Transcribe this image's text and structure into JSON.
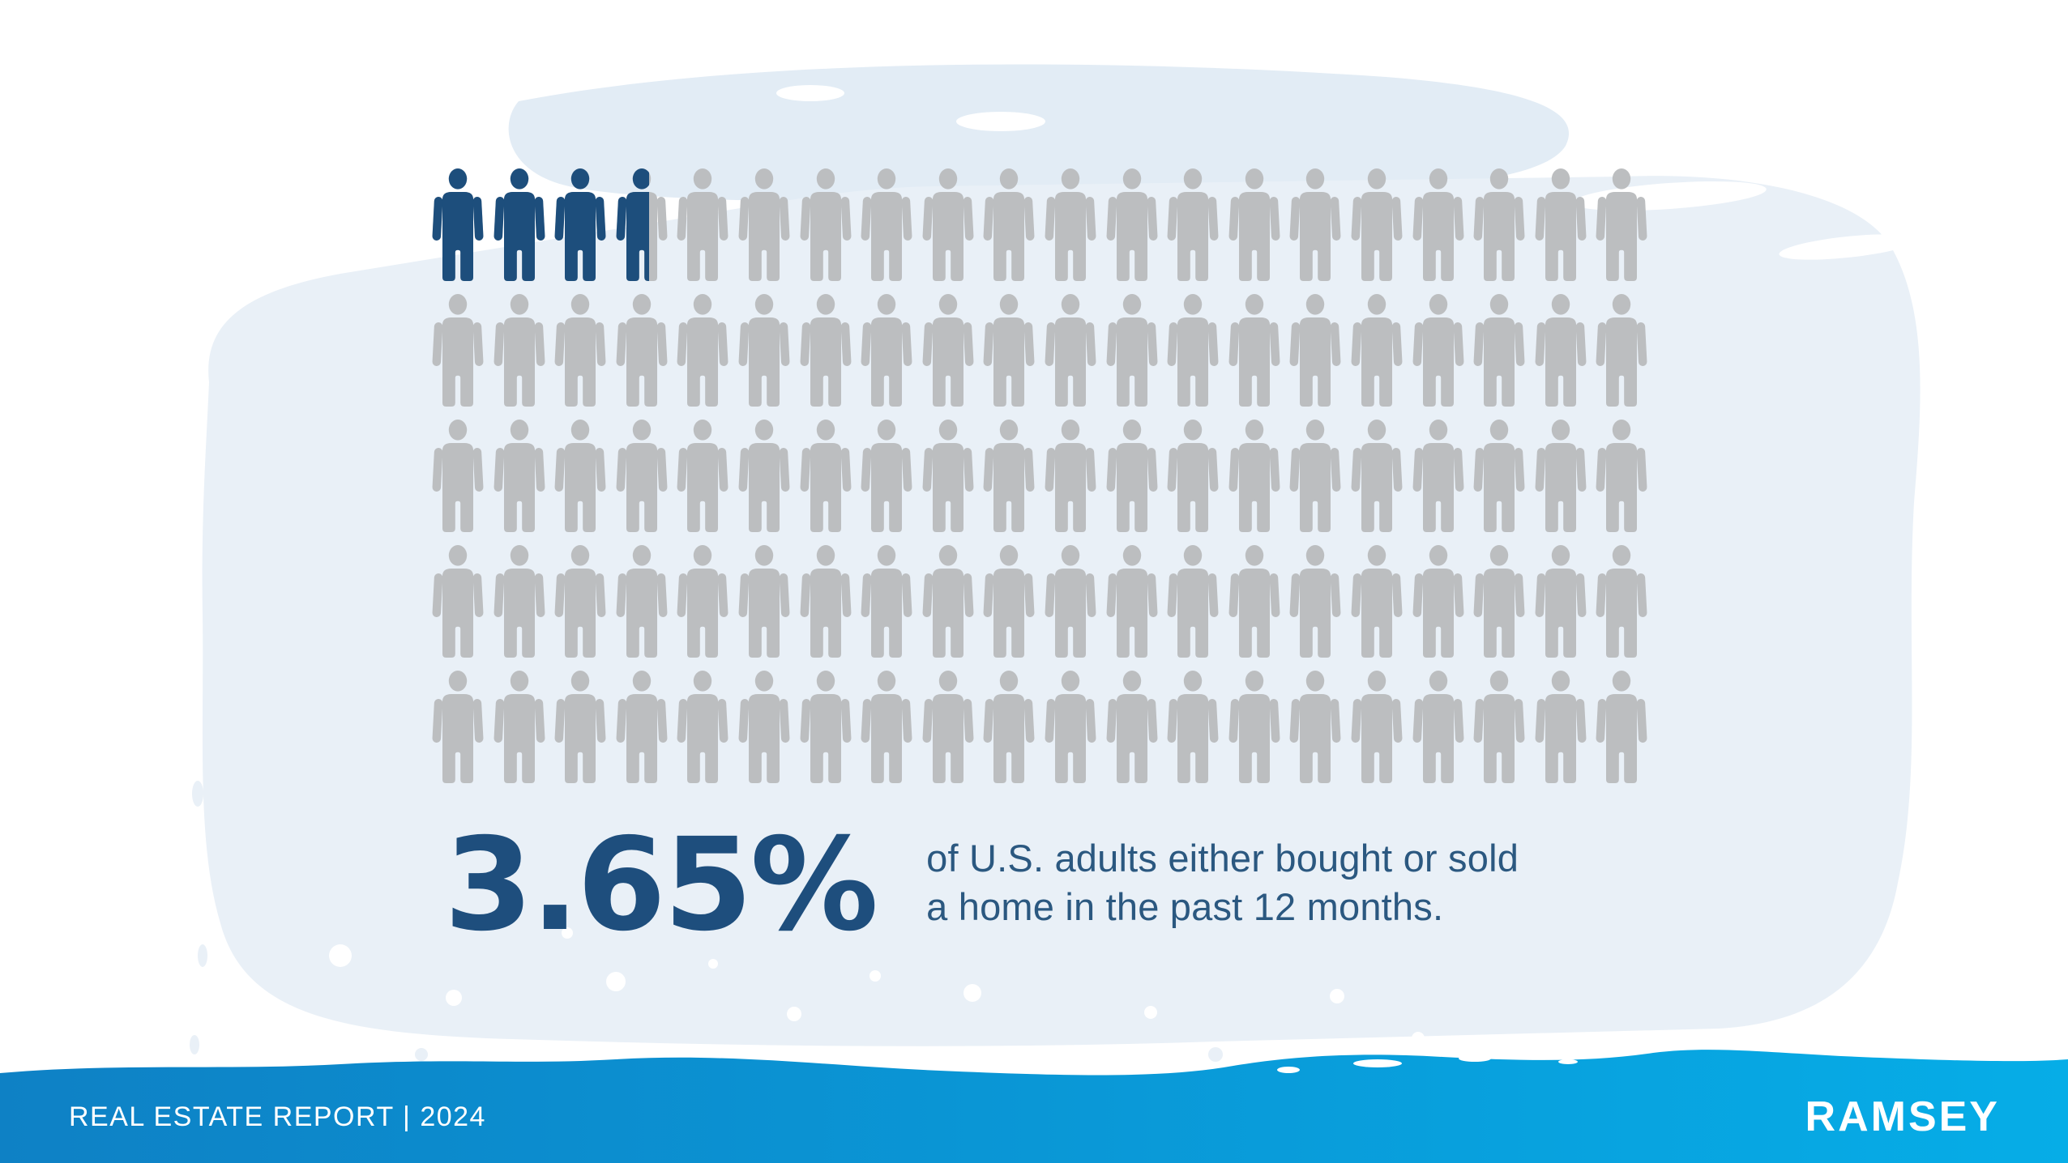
{
  "colors": {
    "highlight_navy": "#1d4e7c",
    "icon_gray": "#bcbec0",
    "wash_main": "#e9f0f7",
    "wash_band": "#e2ecf5",
    "footer_blue_left": "#0e81c5",
    "footer_blue_right": "#06ade7",
    "stat_text": "#1e4e7d",
    "desc_text": "#2b5880",
    "footer_text": "#ffffff",
    "page_bg": "#ffffff"
  },
  "chart_data": {
    "type": "pictogram",
    "icon": "person",
    "total_icons": 100,
    "rows": 5,
    "cols": 20,
    "highlighted_value": 3.65,
    "highlight_color": "#1d4e7c",
    "base_color": "#bcbec0",
    "title": "3.65% of U.S. adults either bought or sold a home in the past 12 months.",
    "legend": "none",
    "annotation": "3 full icons plus one 65%-filled icon represent 3.65 out of 100 people"
  },
  "stat": {
    "value": "3.65%",
    "line1": "of U.S. adults either bought or sold",
    "line2": "a home in the past 12 months."
  },
  "footer": {
    "label": "REAL ESTATE REPORT | 2024",
    "brand": "RAMSEY"
  }
}
